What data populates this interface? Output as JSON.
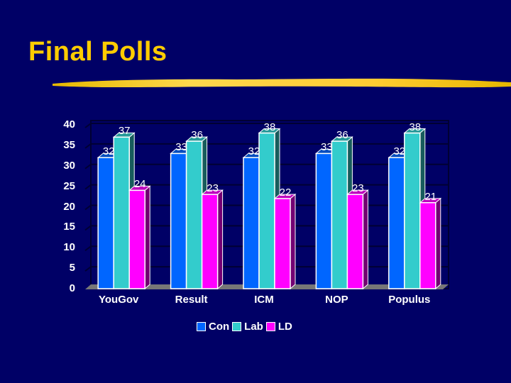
{
  "slide": {
    "title": "Final Polls",
    "accent_color": "#ffcc00",
    "background_color": "#000066"
  },
  "chart_data": {
    "type": "bar",
    "title": "",
    "xlabel": "",
    "ylabel": "",
    "categories": [
      "YouGov",
      "Result",
      "ICM",
      "NOP",
      "Populus"
    ],
    "series": [
      {
        "name": "Con",
        "color": "#0066ff",
        "values": [
          32,
          33,
          32,
          33,
          32
        ]
      },
      {
        "name": "Lab",
        "color": "#33cccc",
        "values": [
          37,
          36,
          38,
          36,
          38
        ]
      },
      {
        "name": "LD",
        "color": "#ff00ff",
        "values": [
          24,
          23,
          22,
          23,
          21
        ]
      }
    ],
    "ylim": [
      0,
      40
    ],
    "yticks": [
      0,
      5,
      10,
      15,
      20,
      25,
      30,
      35,
      40
    ],
    "grid": true,
    "legend_position": "bottom",
    "data_labels": true,
    "style": "3d-column"
  }
}
